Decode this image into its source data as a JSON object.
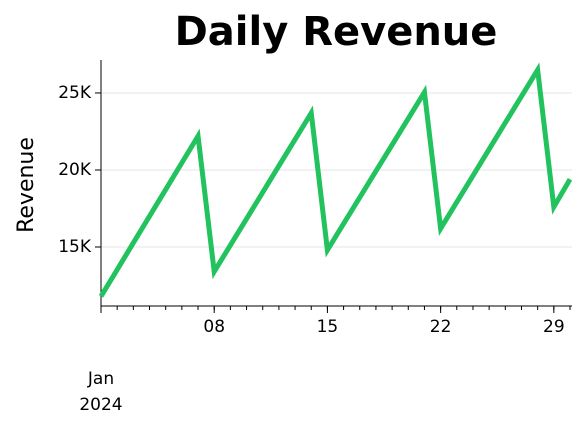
{
  "chart_data": {
    "type": "line",
    "title": "Daily Revenue",
    "y_label": "Revenue",
    "x": [
      "2024-01-01",
      "2024-01-02",
      "2024-01-03",
      "2024-01-04",
      "2024-01-05",
      "2024-01-06",
      "2024-01-07",
      "2024-01-08",
      "2024-01-09",
      "2024-01-10",
      "2024-01-11",
      "2024-01-12",
      "2024-01-13",
      "2024-01-14",
      "2024-01-15",
      "2024-01-16",
      "2024-01-17",
      "2024-01-18",
      "2024-01-19",
      "2024-01-20",
      "2024-01-21",
      "2024-01-22",
      "2024-01-23",
      "2024-01-24",
      "2024-01-25",
      "2024-01-26",
      "2024-01-27",
      "2024-01-28",
      "2024-01-29",
      "2024-01-30"
    ],
    "series": [
      {
        "name": "Revenue",
        "color": "#22c35e",
        "values": [
          11800,
          13530,
          15270,
          17000,
          18730,
          20470,
          22200,
          13400,
          15120,
          16830,
          18550,
          20270,
          21980,
          23700,
          14800,
          16510,
          18220,
          19930,
          21630,
          23340,
          25050,
          16200,
          17920,
          19630,
          21350,
          23070,
          24780,
          26500,
          17600,
          19400
        ]
      }
    ],
    "xlim": [
      "2024-01-01",
      "2024-01-30"
    ],
    "xticks": [
      {
        "value": "2024-01-08",
        "label": "08"
      },
      {
        "value": "2024-01-15",
        "label": "15"
      },
      {
        "value": "2024-01-22",
        "label": "22"
      },
      {
        "value": "2024-01-29",
        "label": "29"
      }
    ],
    "x_period_label": [
      "Jan",
      "2024"
    ],
    "ylim": [
      11170,
      27140
    ],
    "yticks": [
      {
        "value": 15000,
        "label": "15K"
      },
      {
        "value": 20000,
        "label": "20K"
      },
      {
        "value": 25000,
        "label": "25K"
      }
    ],
    "grid": true
  }
}
